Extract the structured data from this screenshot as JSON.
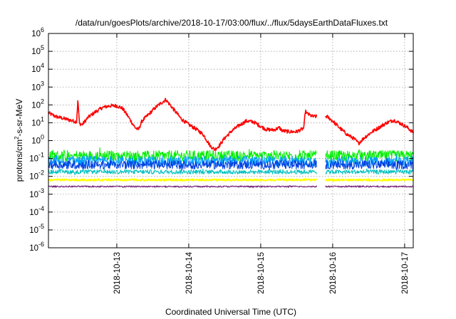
{
  "chart_data": {
    "type": "line",
    "title": "/data/run/goesPlots/archive/2018-10-17/03:00/flux/../flux/5daysEarthDataFluxes.txt",
    "xlabel": "Coordinated Universal Time (UTC)",
    "ylabel_base": "protons/cm",
    "ylabel_sup": "2",
    "ylabel_rest": "-s-sr-MeV",
    "y_scale": "log",
    "ylim_exp": [
      -6,
      6
    ],
    "y_tick_exponents": [
      -6,
      -5,
      -4,
      -3,
      -2,
      -1,
      0,
      1,
      2,
      3,
      4,
      5,
      6
    ],
    "y_tick_base": "10",
    "x_range_days": [
      2018.1,
      2018.17
    ],
    "x_ticks": [
      {
        "label": "2018-10-13",
        "day": 13
      },
      {
        "label": "2018-10-14",
        "day": 14
      },
      {
        "label": "2018-10-15",
        "day": 15
      },
      {
        "label": "2018-10-16",
        "day": 16
      },
      {
        "label": "2018-10-17",
        "day": 17
      }
    ],
    "x_start_day": 12.05,
    "x_end_day": 17.12,
    "grid": true,
    "gap_days": [
      15.78,
      15.9
    ],
    "series": [
      {
        "color": "#ff0000",
        "noise": 0.1,
        "width": 1.6,
        "points": [
          [
            12.05,
            1.55
          ],
          [
            12.15,
            1.35
          ],
          [
            12.3,
            1.2
          ],
          [
            12.44,
            1.05
          ],
          [
            12.46,
            2.3
          ],
          [
            12.48,
            0.95
          ],
          [
            12.52,
            0.9
          ],
          [
            12.6,
            1.3
          ],
          [
            12.7,
            1.6
          ],
          [
            12.8,
            1.85
          ],
          [
            12.9,
            1.95
          ],
          [
            13.0,
            1.95
          ],
          [
            13.08,
            1.8
          ],
          [
            13.15,
            1.4
          ],
          [
            13.25,
            0.75
          ],
          [
            13.3,
            0.6
          ],
          [
            13.35,
            1.1
          ],
          [
            13.45,
            1.5
          ],
          [
            13.55,
            1.9
          ],
          [
            13.68,
            2.3
          ],
          [
            13.72,
            2.1
          ],
          [
            13.8,
            1.7
          ],
          [
            13.9,
            1.2
          ],
          [
            14.0,
            0.9
          ],
          [
            14.1,
            0.65
          ],
          [
            14.2,
            0.35
          ],
          [
            14.3,
            -0.3
          ],
          [
            14.36,
            -0.5
          ],
          [
            14.42,
            -0.3
          ],
          [
            14.5,
            0.15
          ],
          [
            14.6,
            0.55
          ],
          [
            14.7,
            0.85
          ],
          [
            14.8,
            1.1
          ],
          [
            14.9,
            1.05
          ],
          [
            15.0,
            0.8
          ],
          [
            15.08,
            0.62
          ],
          [
            15.18,
            0.6
          ],
          [
            15.26,
            0.72
          ],
          [
            15.3,
            0.55
          ],
          [
            15.4,
            0.5
          ],
          [
            15.5,
            0.5
          ],
          [
            15.6,
            0.7
          ],
          [
            15.62,
            1.65
          ],
          [
            15.65,
            1.5
          ],
          [
            15.72,
            1.35
          ],
          [
            15.92,
            1.35
          ],
          [
            16.0,
            1.1
          ],
          [
            16.1,
            0.7
          ],
          [
            16.2,
            0.35
          ],
          [
            16.3,
            0.1
          ],
          [
            16.36,
            -0.15
          ],
          [
            16.45,
            0.2
          ],
          [
            16.55,
            0.5
          ],
          [
            16.65,
            0.75
          ],
          [
            16.75,
            1.0
          ],
          [
            16.85,
            1.15
          ],
          [
            16.95,
            0.95
          ],
          [
            17.05,
            0.7
          ],
          [
            17.12,
            0.45
          ]
        ]
      },
      {
        "color": "#00ee00",
        "noise": 0.3,
        "width": 1.0,
        "points": [
          [
            12.05,
            -0.85
          ],
          [
            17.12,
            -0.85
          ]
        ]
      },
      {
        "color": "#00a0ff",
        "noise": 0.28,
        "width": 1.0,
        "points": [
          [
            12.05,
            -1.15
          ],
          [
            17.12,
            -1.15
          ]
        ]
      },
      {
        "color": "#0040e0",
        "noise": 0.25,
        "width": 1.0,
        "points": [
          [
            12.05,
            -1.35
          ],
          [
            17.12,
            -1.35
          ]
        ]
      },
      {
        "color": "#00c0c0",
        "noise": 0.12,
        "width": 1.0,
        "points": [
          [
            12.05,
            -1.75
          ],
          [
            17.12,
            -1.75
          ]
        ]
      },
      {
        "color": "#ffff00",
        "noise": 0.05,
        "width": 1.8,
        "points": [
          [
            12.05,
            -2.2
          ],
          [
            17.12,
            -2.2
          ]
        ]
      },
      {
        "color": "#7a2b7a",
        "noise": 0.04,
        "width": 1.2,
        "points": [
          [
            12.05,
            -2.57
          ],
          [
            17.12,
            -2.57
          ]
        ]
      }
    ]
  }
}
